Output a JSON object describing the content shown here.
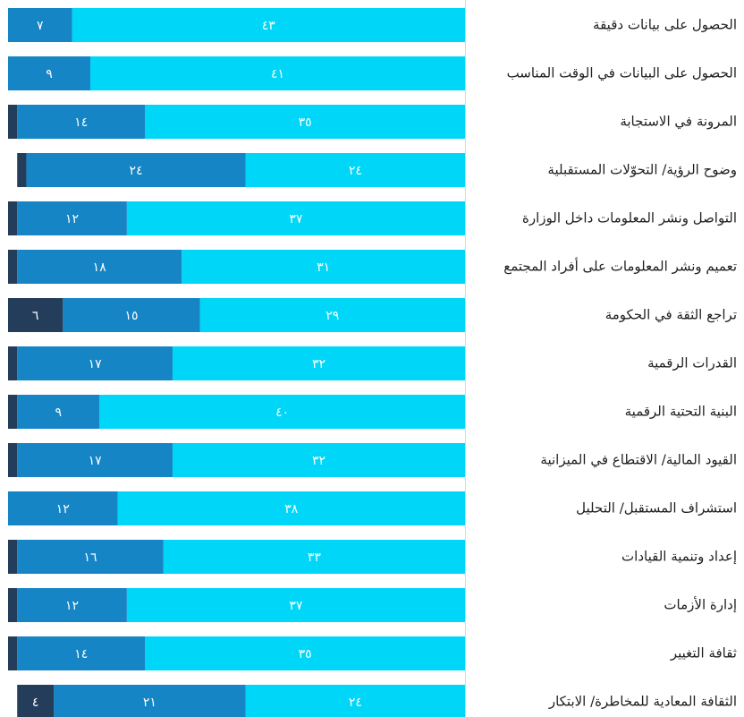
{
  "chart_data": {
    "type": "bar",
    "orientation": "horizontal",
    "stacked": true,
    "categories": [
      "الحصول على بيانات دقيقة",
      "الحصول على البيانات في الوقت المناسب",
      "المرونة في الاستجابة",
      "وضوح الرؤية/ التحوّلات المستقبلية",
      "التواصل ونشر المعلومات داخل الوزارة",
      "تعميم ونشر المعلومات على أفراد المجتمع",
      "تراجع الثقة في الحكومة",
      "القدرات الرقمية",
      "البنية التحتية الرقمية",
      "القيود المالية/ الاقتطاع في الميزانية",
      "استشراف المستقبل/ التحليل",
      "إعداد وتنمية القيادات",
      "إدارة الأزمات",
      "ثقافة التغيير",
      "الثقافة المعادية للمخاطرة/ الابتكار"
    ],
    "xlim": [
      0,
      50
    ],
    "series": [
      {
        "color": "#233d5a",
        "values": [
          0,
          0,
          1,
          1,
          1,
          1,
          6,
          1,
          1,
          1,
          0,
          1,
          1,
          1,
          4
        ],
        "value_labels": [
          null,
          null,
          null,
          null,
          null,
          null,
          "٦",
          null,
          null,
          null,
          null,
          null,
          null,
          null,
          "٤"
        ]
      },
      {
        "color": "#1585c5",
        "values": [
          7,
          9,
          14,
          24,
          12,
          18,
          15,
          17,
          9,
          17,
          12,
          16,
          12,
          14,
          21
        ],
        "value_labels": [
          "٧",
          "٩",
          "١٤",
          "٢٤",
          "١٢",
          "١٨",
          "١٥",
          "١٧",
          "٩",
          "١٧",
          "١٢",
          "١٦",
          "١٢",
          "١٤",
          "٢١"
        ]
      },
      {
        "color": "#00d6f7",
        "values": [
          43,
          41,
          35,
          24,
          37,
          31,
          29,
          32,
          40,
          32,
          38,
          33,
          37,
          35,
          24
        ],
        "value_labels": [
          "٤٣",
          "٤١",
          "٣٥",
          "٢٤",
          "٣٧",
          "٣١",
          "٢٩",
          "٣٢",
          "٤٠",
          "٣٢",
          "٣٨",
          "٣٣",
          "٣٧",
          "٣٥",
          "٢٤"
        ]
      }
    ]
  }
}
